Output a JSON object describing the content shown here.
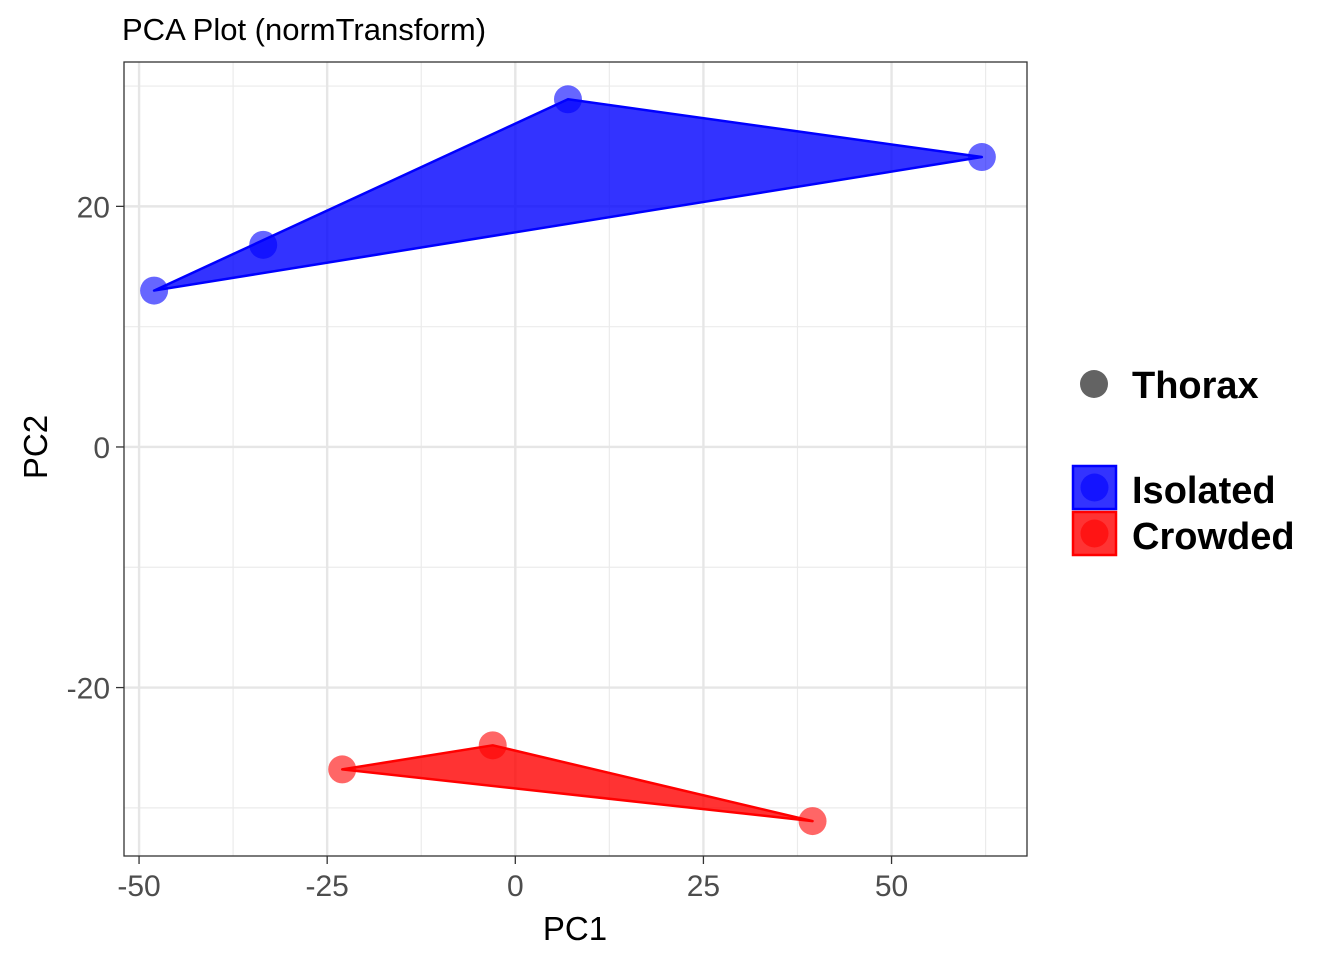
{
  "chart_data": {
    "type": "scatter",
    "title": "PCA Plot (normTransform)",
    "xlabel": "PC1",
    "ylabel": "PC2",
    "xlim": [
      -52,
      68
    ],
    "ylim": [
      -34,
      32
    ],
    "x_ticks": [
      -50,
      -25,
      0,
      25,
      50
    ],
    "y_ticks": [
      -20,
      0,
      20
    ],
    "x_tick_labels": [
      "-50",
      "-25",
      "0",
      "25",
      "50"
    ],
    "y_tick_labels": [
      "-20",
      "0",
      "20"
    ],
    "grid": true,
    "series": [
      {
        "name": "Isolated",
        "color": "#0000ff",
        "hull_order": [
          1,
          3,
          2
        ],
        "points": [
          [
            -33.5,
            16.8
          ],
          [
            -48.0,
            13.0
          ],
          [
            7.0,
            28.9
          ],
          [
            62.0,
            24.1
          ]
        ]
      },
      {
        "name": "Crowded",
        "color": "#ff0000",
        "hull_order": [
          0,
          1,
          2
        ],
        "points": [
          [
            -23.0,
            -26.8
          ],
          [
            -3.0,
            -24.8
          ],
          [
            39.5,
            -31.1
          ]
        ]
      }
    ],
    "legend": {
      "position": "right",
      "shape_entry": "Thorax",
      "shape_color": "#636363",
      "group_entries": [
        "Isolated",
        "Crowded"
      ]
    }
  }
}
